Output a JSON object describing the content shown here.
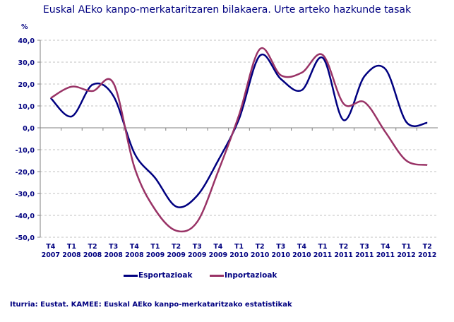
{
  "chart_data": {
    "type": "line",
    "title": "Euskal AEko kanpo-merkataritzaren bilakaera. Urte arteko hazkunde tasak",
    "ylabel": "%",
    "xlabel": "",
    "ylim": [
      -50,
      40
    ],
    "yticks": [
      "40,0",
      "30,0",
      "20,0",
      "10,0",
      "0,0",
      "-10,0",
      "-20,0",
      "-30,0",
      "-40,0",
      "-50,0"
    ],
    "ytick_values": [
      40,
      30,
      20,
      10,
      0,
      -10,
      -20,
      -30,
      -40,
      -50
    ],
    "grid": true,
    "legend_position": "bottom",
    "categories": [
      [
        "T4",
        "2007"
      ],
      [
        "T1",
        "2008"
      ],
      [
        "T2",
        "2008"
      ],
      [
        "T3",
        "2008"
      ],
      [
        "T4",
        "2008"
      ],
      [
        "T1",
        "2009"
      ],
      [
        "T2",
        "2009"
      ],
      [
        "T3",
        "2009"
      ],
      [
        "T4",
        "2009"
      ],
      [
        "T1",
        "2010"
      ],
      [
        "T2",
        "2010"
      ],
      [
        "T3",
        "2010"
      ],
      [
        "T4",
        "2010"
      ],
      [
        "T1",
        "2011"
      ],
      [
        "T2",
        "2011"
      ],
      [
        "T3",
        "2011"
      ],
      [
        "T4",
        "2011"
      ],
      [
        "T1",
        "2012"
      ],
      [
        "T2",
        "2012"
      ]
    ],
    "series": [
      {
        "name": "Esportazioak",
        "color": "#000080",
        "values": [
          13.6,
          5.2,
          19.7,
          14.5,
          -11.6,
          -23,
          -36,
          -31,
          -15,
          4,
          33,
          22.3,
          17.2,
          32,
          3.5,
          23.6,
          26.8,
          2.6,
          2.3
        ]
      },
      {
        "name": "Inportazioak",
        "color": "#993366",
        "values": [
          13.6,
          18.8,
          16.8,
          20.4,
          -18,
          -37.5,
          -47,
          -43,
          -20,
          5.8,
          36,
          24,
          25.2,
          33.3,
          11,
          11.7,
          -2,
          -15,
          -17
        ]
      }
    ]
  },
  "source": "Iturria: Eustat. KAMEE: Euskal AEko kanpo-merkataritzako estatistikak"
}
